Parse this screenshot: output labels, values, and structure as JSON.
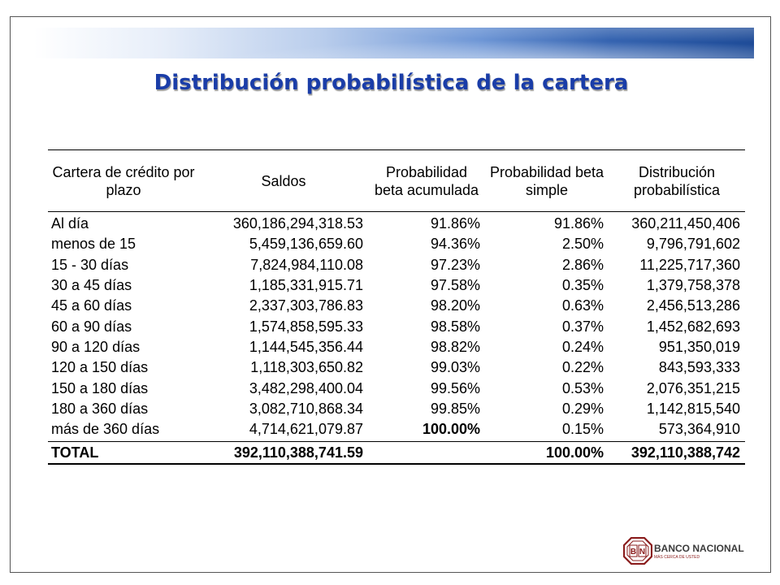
{
  "slide": {
    "title": "Distribución probabilística de la cartera"
  },
  "table": {
    "headers": [
      "Cartera de crédito por plazo",
      "Saldos",
      "Probabilidad beta acumulada",
      "Probabilidad beta simple",
      "Distribución probabilística"
    ],
    "rows": [
      [
        "Al día",
        "360,186,294,318.53",
        "91.86%",
        "91.86%",
        "360,211,450,406"
      ],
      [
        "menos de 15",
        "5,459,136,659.60",
        "94.36%",
        "2.50%",
        "9,796,791,602"
      ],
      [
        "15 - 30 días",
        "7,824,984,110.08",
        "97.23%",
        "2.86%",
        "11,225,717,360"
      ],
      [
        "30 a 45 días",
        "1,185,331,915.71",
        "97.58%",
        "0.35%",
        "1,379,758,378"
      ],
      [
        "45 a 60 días",
        "2,337,303,786.83",
        "98.20%",
        "0.63%",
        "2,456,513,286"
      ],
      [
        "60 a 90 días",
        "1,574,858,595.33",
        "98.58%",
        "0.37%",
        "1,452,682,693"
      ],
      [
        "90 a 120 días",
        "1,144,545,356.44",
        "98.82%",
        "0.24%",
        "951,350,019"
      ],
      [
        "120 a 150 días",
        "1,118,303,650.82",
        "99.03%",
        "0.22%",
        "843,593,333"
      ],
      [
        "150 a 180 días",
        "3,482,298,400.04",
        "99.56%",
        "0.53%",
        "2,076,351,215"
      ],
      [
        "180 a 360 días",
        "3,082,710,868.34",
        "99.85%",
        "0.29%",
        "1,142,815,540"
      ],
      [
        "más de 360 días",
        "4,714,621,079.87",
        "100.00%",
        "0.15%",
        "573,364,910"
      ]
    ],
    "total": [
      "TOTAL",
      "392,110,388,741.59",
      "",
      "100.00%",
      "392,110,388,742"
    ]
  },
  "logo": {
    "letters": [
      "B",
      "N"
    ],
    "name": "BANCO NACIONAL",
    "tagline": "MÁS CERCA DE USTED",
    "color": "#8a1c1c"
  }
}
